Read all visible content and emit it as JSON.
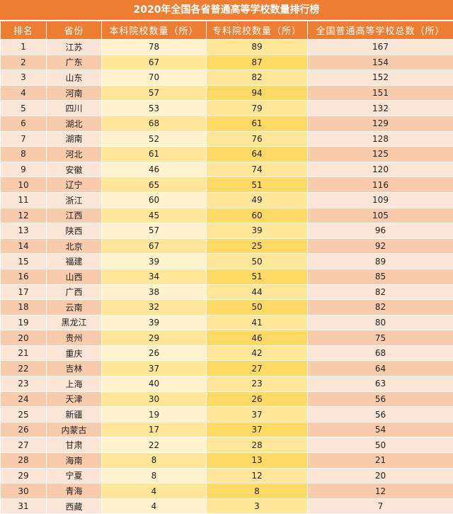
{
  "title": "2020年全国各省普通高等学校数量排行榜",
  "colors": {
    "header_bg": "#ED7D31",
    "row_light": "#FBE5D6",
    "row_dark": "#F8CBAD",
    "col_a_light": "#FFF2CC",
    "col_a_dark": "#FFE699",
    "col_b_light": "#FFE699",
    "col_b_dark": "#FFD966"
  },
  "headers": [
    "排名",
    "省份",
    "本科院校数量（所）",
    "专科院校数量（所）",
    "全国普通高等学校总数（所）"
  ],
  "rows": [
    [
      "1",
      "江苏",
      "78",
      "89",
      "167"
    ],
    [
      "2",
      "广东",
      "67",
      "87",
      "154"
    ],
    [
      "3",
      "山东",
      "70",
      "82",
      "152"
    ],
    [
      "4",
      "河南",
      "57",
      "94",
      "151"
    ],
    [
      "5",
      "四川",
      "53",
      "79",
      "132"
    ],
    [
      "6",
      "湖北",
      "68",
      "61",
      "129"
    ],
    [
      "7",
      "湖南",
      "52",
      "76",
      "128"
    ],
    [
      "8",
      "河北",
      "61",
      "64",
      "125"
    ],
    [
      "9",
      "安徽",
      "46",
      "74",
      "120"
    ],
    [
      "10",
      "辽宁",
      "65",
      "51",
      "116"
    ],
    [
      "11",
      "浙江",
      "60",
      "49",
      "109"
    ],
    [
      "12",
      "江西",
      "45",
      "60",
      "105"
    ],
    [
      "13",
      "陕西",
      "57",
      "39",
      "96"
    ],
    [
      "14",
      "北京",
      "67",
      "25",
      "92"
    ],
    [
      "15",
      "福建",
      "39",
      "50",
      "89"
    ],
    [
      "16",
      "山西",
      "34",
      "51",
      "85"
    ],
    [
      "17",
      "广西",
      "38",
      "44",
      "82"
    ],
    [
      "18",
      "云南",
      "32",
      "50",
      "82"
    ],
    [
      "19",
      "黑龙江",
      "39",
      "41",
      "80"
    ],
    [
      "20",
      "贵州",
      "29",
      "46",
      "75"
    ],
    [
      "21",
      "重庆",
      "26",
      "42",
      "68"
    ],
    [
      "22",
      "吉林",
      "37",
      "27",
      "64"
    ],
    [
      "23",
      "上海",
      "40",
      "23",
      "63"
    ],
    [
      "24",
      "天津",
      "30",
      "26",
      "56"
    ],
    [
      "25",
      "新疆",
      "19",
      "37",
      "56"
    ],
    [
      "26",
      "内蒙古",
      "17",
      "37",
      "54"
    ],
    [
      "27",
      "甘肃",
      "22",
      "28",
      "50"
    ],
    [
      "28",
      "海南",
      "8",
      "13",
      "21"
    ],
    [
      "29",
      "宁夏",
      "8",
      "12",
      "20"
    ],
    [
      "30",
      "青海",
      "4",
      "8",
      "12"
    ],
    [
      "31",
      "西藏",
      "4",
      "3",
      "7"
    ]
  ]
}
